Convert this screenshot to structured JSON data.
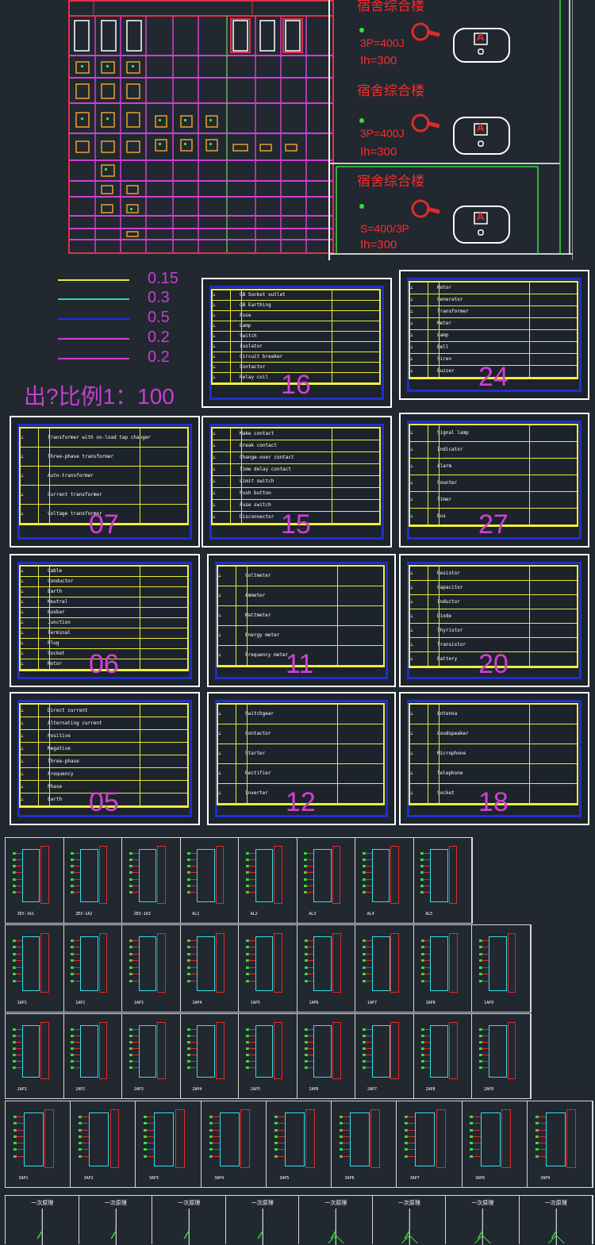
{
  "top_panel": {
    "cabinets": [
      {
        "title": "宿舍综合楼",
        "spec_line": "3P=400J",
        "rating": "Ih=300"
      },
      {
        "title": "宿舍综合楼",
        "spec_line": "3P=400J",
        "rating": "Ih=300"
      },
      {
        "title": "宿舍综合楼",
        "spec_line": "S=400/3P",
        "rating": "Ih=300"
      }
    ],
    "ammeter_symbol": "A"
  },
  "line_weights": {
    "values": [
      "0.15",
      "0.3",
      "0.5",
      "0.2",
      "0.2"
    ],
    "colors": [
      "#e8e83a",
      "#2fd0c8",
      "#2030e0",
      "#d23ed3",
      "#d23ed3"
    ]
  },
  "scale_note": "出?比例1：100",
  "sheets": [
    {
      "number": "16",
      "rows": [
        "GB Socket outlet",
        "GB Earthing",
        "Fuse",
        "Lamp",
        "Switch",
        "Isolator",
        "Circuit breaker",
        "Contactor",
        "Relay coil"
      ]
    },
    {
      "number": "24",
      "rows": [
        "Motor",
        "Generator",
        "Transformer",
        "Meter",
        "Lamp",
        "Bell",
        "Siren",
        "Buzzer"
      ]
    },
    {
      "number": "07",
      "rows": [
        "Transformer with on-load tap changer",
        "Three-phase transformer",
        "Auto-transformer",
        "Current transformer",
        "Voltage transformer"
      ]
    },
    {
      "number": "15",
      "rows": [
        "Make contact",
        "Break contact",
        "Change-over contact",
        "Time delay contact",
        "Limit switch",
        "Push button",
        "Fuse switch",
        "Disconnector"
      ]
    },
    {
      "number": "27",
      "rows": [
        "Signal lamp",
        "Indicator",
        "Alarm",
        "Counter",
        "Timer",
        "Bus"
      ]
    },
    {
      "number": "06",
      "rows": [
        "Cable",
        "Conductor",
        "Earth",
        "Neutral",
        "Busbar",
        "Junction",
        "Terminal",
        "Plug",
        "Socket",
        "Motor"
      ]
    },
    {
      "number": "11",
      "rows": [
        "Voltmeter",
        "Ammeter",
        "Wattmeter",
        "Energy meter",
        "Frequency meter"
      ]
    },
    {
      "number": "20",
      "rows": [
        "Resistor",
        "Capacitor",
        "Inductor",
        "Diode",
        "Thyristor",
        "Transistor",
        "Battery"
      ]
    },
    {
      "number": "05",
      "rows": [
        "Direct current",
        "Alternating current",
        "Positive",
        "Negative",
        "Three-phase",
        "Frequency",
        "Phase",
        "Earth"
      ]
    },
    {
      "number": "12",
      "rows": [
        "Switchgear",
        "Contactor",
        "Starter",
        "Rectifier",
        "Inverter"
      ]
    },
    {
      "number": "18",
      "rows": [
        "Antenna",
        "Loudspeaker",
        "Microphone",
        "Telephone",
        "Socket"
      ]
    }
  ],
  "schematic_rows": [
    {
      "count": 8,
      "captions": [
        "ZEX-1A1",
        "ZEX-1A2",
        "ZEX-1A3",
        "AL1",
        "AL2",
        "AL3",
        "AL4",
        "AL5"
      ]
    },
    {
      "count": 9,
      "captions": [
        "1AP1",
        "1AP2",
        "1AP3",
        "1AP4",
        "1AP5",
        "1AP6",
        "1AP7",
        "1AP8",
        "1AP9"
      ]
    },
    {
      "count": 9,
      "captions": [
        "2AP1",
        "2AP2",
        "2AP3",
        "2AP4",
        "2AP5",
        "2AP6",
        "2AP7",
        "2AP8",
        "2AP9"
      ]
    },
    {
      "count": 9,
      "captions": [
        "3AP1",
        "3AP2",
        "3AP3",
        "3AP4",
        "3AP5",
        "3AP6",
        "3AP7",
        "3AP8",
        "3AP9"
      ]
    }
  ],
  "primary_diagrams": {
    "title": "一次原理",
    "count": 8
  }
}
